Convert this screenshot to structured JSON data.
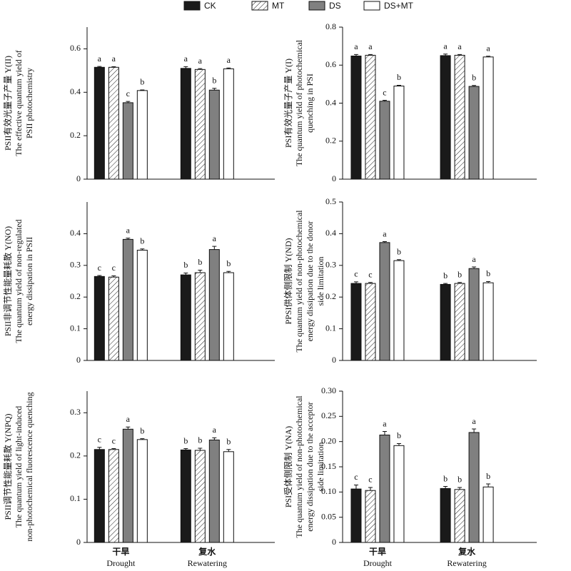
{
  "legend": [
    {
      "name": "CK",
      "color": "#1a1a1a"
    },
    {
      "name": "MT",
      "color": "#ffffff",
      "hatch": true
    },
    {
      "name": "DS",
      "color": "#808080"
    },
    {
      "name": "DS+MT",
      "color": "#ffffff"
    }
  ],
  "chart_data": [
    {
      "type": "bar",
      "ylabel": [
        "PSII有效光量子产量 Y(II)",
        "The effective quantum yield of",
        "PSII photochemistry"
      ],
      "categories": [
        null,
        null
      ],
      "ylim": [
        0,
        0.7
      ],
      "yticks": [
        0,
        0.2,
        0.4,
        0.6
      ],
      "series": [
        {
          "values": [
            0.515,
            0.51
          ],
          "errors": [
            0.004,
            0.008
          ],
          "letters": [
            "a",
            "a"
          ]
        },
        {
          "values": [
            0.515,
            0.505
          ],
          "errors": [
            0.003,
            0.004
          ],
          "letters": [
            "a",
            "a"
          ]
        },
        {
          "values": [
            0.352,
            0.41
          ],
          "errors": [
            0.006,
            0.008
          ],
          "letters": [
            "c",
            "b"
          ]
        },
        {
          "values": [
            0.408,
            0.508
          ],
          "errors": [
            0.003,
            0.004
          ],
          "letters": [
            "b",
            "a"
          ]
        }
      ]
    },
    {
      "type": "bar",
      "ylabel": [
        "PSI有效光量子产量 Y(I)",
        "The quantum yield of photochemical",
        "quenching in PSI"
      ],
      "categories": [
        null,
        null
      ],
      "ylim": [
        0,
        0.8
      ],
      "yticks": [
        0,
        0.2,
        0.4,
        0.6,
        0.8
      ],
      "series": [
        {
          "values": [
            0.648,
            0.65
          ],
          "errors": [
            0.008,
            0.008
          ],
          "letters": [
            "a",
            "a"
          ]
        },
        {
          "values": [
            0.652,
            0.652
          ],
          "errors": [
            0.004,
            0.004
          ],
          "letters": [
            "a",
            "a"
          ]
        },
        {
          "values": [
            0.41,
            0.488
          ],
          "errors": [
            0.005,
            0.005
          ],
          "letters": [
            "c",
            "b"
          ]
        },
        {
          "values": [
            0.49,
            0.643
          ],
          "errors": [
            0.004,
            0.004
          ],
          "letters": [
            "b",
            "a"
          ]
        }
      ]
    },
    {
      "type": "bar",
      "ylabel": [
        "PSII非调节性能量耗散 Y(NO)",
        "The quantum yield of non-regulated",
        "energy dissipation in PSII"
      ],
      "categories": [
        null,
        null
      ],
      "ylim": [
        0,
        0.5
      ],
      "yticks": [
        0,
        0.1,
        0.2,
        0.3,
        0.4
      ],
      "series": [
        {
          "values": [
            0.265,
            0.27
          ],
          "errors": [
            0.003,
            0.006
          ],
          "letters": [
            "c",
            "b"
          ]
        },
        {
          "values": [
            0.263,
            0.277
          ],
          "errors": [
            0.004,
            0.008
          ],
          "letters": [
            "c",
            "b"
          ]
        },
        {
          "values": [
            0.382,
            0.35
          ],
          "errors": [
            0.004,
            0.01
          ],
          "letters": [
            "a",
            "a"
          ]
        },
        {
          "values": [
            0.348,
            0.277
          ],
          "errors": [
            0.004,
            0.004
          ],
          "letters": [
            "b",
            "b"
          ]
        }
      ]
    },
    {
      "type": "bar",
      "ylabel": [
        "PPSI供体侧限制 Y(ND)",
        "The quantum yield of non-photochemical",
        "energy dissipation due to the donor",
        "side limitation"
      ],
      "categories": [
        null,
        null
      ],
      "ylim": [
        0,
        0.5
      ],
      "yticks": [
        0,
        0.1,
        0.2,
        0.3,
        0.4,
        0.5
      ],
      "series": [
        {
          "values": [
            0.243,
            0.24
          ],
          "errors": [
            0.005,
            0.003
          ],
          "letters": [
            "c",
            "b"
          ]
        },
        {
          "values": [
            0.243,
            0.243
          ],
          "errors": [
            0.003,
            0.003
          ],
          "letters": [
            "c",
            "b"
          ]
        },
        {
          "values": [
            0.372,
            0.29
          ],
          "errors": [
            0.003,
            0.005
          ],
          "letters": [
            "a",
            "a"
          ]
        },
        {
          "values": [
            0.315,
            0.245
          ],
          "errors": [
            0.003,
            0.004
          ],
          "letters": [
            "b",
            "b"
          ]
        }
      ]
    },
    {
      "type": "bar",
      "ylabel": [
        "PSII调节性能量耗散 Y(NPQ)",
        "The quantum yield of light-induced",
        "non-photochemical fluorescence quenching"
      ],
      "categories": [
        "干旱",
        "复水"
      ],
      "categories_en": [
        "Drought",
        "Rewatering"
      ],
      "ylim": [
        0,
        0.35
      ],
      "yticks": [
        0,
        0.1,
        0.2,
        0.3
      ],
      "series": [
        {
          "values": [
            0.215,
            0.214
          ],
          "errors": [
            0.005,
            0.003
          ],
          "letters": [
            "c",
            "b"
          ]
        },
        {
          "values": [
            0.215,
            0.213
          ],
          "errors": [
            0.002,
            0.005
          ],
          "letters": [
            "c",
            "b"
          ]
        },
        {
          "values": [
            0.262,
            0.237
          ],
          "errors": [
            0.005,
            0.005
          ],
          "letters": [
            "a",
            "a"
          ]
        },
        {
          "values": [
            0.238,
            0.21
          ],
          "errors": [
            0.002,
            0.005
          ],
          "letters": [
            "b",
            "b"
          ]
        }
      ]
    },
    {
      "type": "bar",
      "ylabel": [
        "PSI受体侧限制 Y(NA)",
        "The quantum yield of non-photochemical",
        "energy dissipation due to the acceptor",
        "side limitation"
      ],
      "categories": [
        "干旱",
        "复水"
      ],
      "categories_en": [
        "Drought",
        "Rewatering"
      ],
      "ylim": [
        0,
        0.3
      ],
      "yticks": [
        0,
        0.05,
        {
          "value": 0.1,
          "label": "0.10"
        },
        0.15,
        {
          "value": 0.2,
          "label": "0.20"
        },
        0.25,
        {
          "value": 0.3,
          "label": "0.30"
        }
      ],
      "series": [
        {
          "values": [
            0.106,
            0.107
          ],
          "errors": [
            0.008,
            0.004
          ],
          "letters": [
            "c",
            "b"
          ]
        },
        {
          "values": [
            0.103,
            0.105
          ],
          "errors": [
            0.006,
            0.004
          ],
          "letters": [
            "c",
            "b"
          ]
        },
        {
          "values": [
            0.213,
            0.218
          ],
          "errors": [
            0.007,
            0.007
          ],
          "letters": [
            "a",
            "a"
          ]
        },
        {
          "values": [
            0.192,
            0.11
          ],
          "errors": [
            0.004,
            0.006
          ],
          "letters": [
            "b",
            "b"
          ]
        }
      ]
    }
  ]
}
